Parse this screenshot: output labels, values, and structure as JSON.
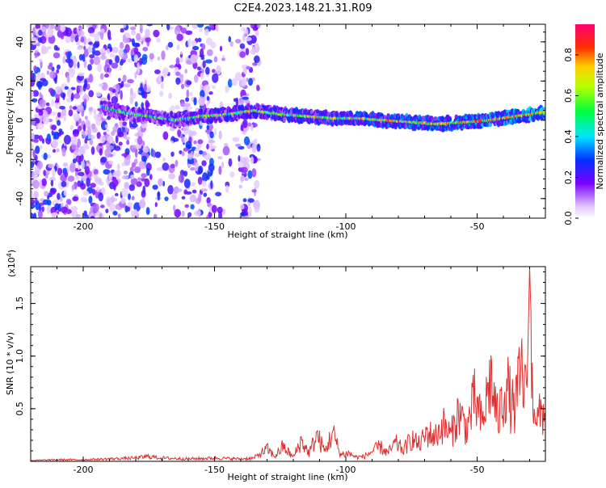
{
  "title": "C2E4.2023.148.21.31.R09",
  "colorbar": {
    "label": "Normalized spectral amplitude",
    "ticks": [
      "0.0",
      "0.2",
      "0.4",
      "0.6",
      "0.8"
    ],
    "tick_values": [
      0.0,
      0.2,
      0.4,
      0.6,
      0.8
    ],
    "range": [
      0,
      0.95
    ]
  },
  "chart_data": [
    {
      "type": "heatmap",
      "xlabel": "Height of straight line (km)",
      "ylabel": "Frequency (Hz)",
      "xlim": [
        -220,
        -24
      ],
      "ylim": [
        -50,
        49
      ],
      "x_ticks": [
        -200,
        -150,
        -100,
        -50
      ],
      "x_tick_labels": [
        "-200",
        "-150",
        "-100",
        "-50"
      ],
      "y_ticks": [
        -40,
        -20,
        0,
        20,
        40
      ],
      "y_tick_labels": [
        "-40",
        "-20",
        "0",
        "20",
        "40"
      ],
      "ridge": {
        "x": [
          -193,
          -185,
          -175,
          -165,
          -155,
          -145,
          -135,
          -125,
          -115,
          -105,
          -95,
          -85,
          -75,
          -65,
          -55,
          -45,
          -35,
          -25
        ],
        "frequency": [
          7,
          4,
          2,
          0,
          2,
          3,
          5,
          3,
          2,
          1,
          1,
          0,
          -1,
          -2,
          -1,
          0,
          2,
          4
        ]
      },
      "noise_region_x": [
        -220,
        -133
      ]
    },
    {
      "type": "line",
      "xlabel": "Height of straight line (km)",
      "ylabel": "SNR (10 * v/v)",
      "y_multiplier": "(x10",
      "y_multiplier_exp": "4",
      "y_multiplier_close": ")",
      "xlim": [
        -220,
        -24
      ],
      "ylim": [
        0.0,
        1.85
      ],
      "x_ticks": [
        -200,
        -150,
        -100,
        -50
      ],
      "x_tick_labels": [
        "-200",
        "-150",
        "-100",
        "-50"
      ],
      "y_ticks": [
        0.5,
        1.0,
        1.5
      ],
      "y_tick_labels": [
        "0.5",
        "1.0",
        "1.5"
      ],
      "series": [
        {
          "x": [
            -220,
            -210,
            -200,
            -190,
            -180,
            -175,
            -170,
            -160,
            -150,
            -140,
            -135,
            -130,
            -127,
            -124,
            -120,
            -117,
            -114,
            -111,
            -108,
            -105,
            -102,
            -99,
            -96,
            -93,
            -90,
            -87,
            -84,
            -81,
            -78,
            -75,
            -72,
            -69,
            -66,
            -63,
            -60,
            -57,
            -54,
            -51,
            -48,
            -45,
            -42,
            -39,
            -36,
            -33,
            -31,
            -30,
            -29,
            -27,
            -25
          ],
          "y": [
            0.01,
            0.02,
            0.02,
            0.03,
            0.04,
            0.06,
            0.04,
            0.03,
            0.04,
            0.03,
            0.04,
            0.15,
            0.06,
            0.18,
            0.05,
            0.25,
            0.1,
            0.32,
            0.12,
            0.35,
            0.08,
            0.1,
            0.05,
            0.06,
            0.12,
            0.18,
            0.1,
            0.22,
            0.14,
            0.28,
            0.2,
            0.35,
            0.3,
            0.45,
            0.32,
            0.6,
            0.4,
            0.75,
            0.45,
            1.02,
            0.5,
            0.95,
            0.6,
            1.1,
            0.7,
            1.85,
            0.9,
            0.5,
            0.62
          ]
        }
      ]
    }
  ]
}
